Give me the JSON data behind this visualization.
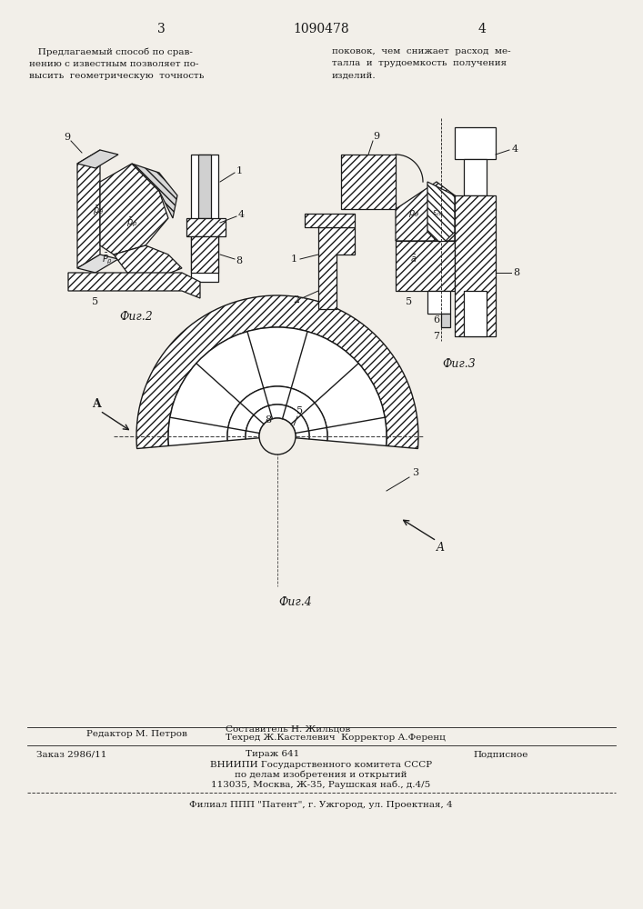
{
  "bg_color": "#f2efe9",
  "page_width": 7.07,
  "page_height": 10.0,
  "header": {
    "page_left": "3",
    "patent_number": "1090478",
    "page_right": "4"
  },
  "text_block_left": "   Предлагаемый способ по срав-\nнению с известным позволяет по-\nвысить  геометрическую  точность",
  "text_block_right": "поковок,  чем  снижает  расход  ме-\nталла  и  трудоемкость  получения\nизделий.",
  "fig2_caption": "Фиг.2",
  "fig3_caption": "Фиг.3",
  "fig4_caption": "Фиг.4",
  "footer_line1_left": "Редактор М. Петров",
  "footer_line1_mid": "Техред Ж.Кастелевич  Корректор А.Ференц",
  "footer_line2_left": "Заказ 2986/11",
  "footer_line2_mid": "Тираж 641",
  "footer_line2_right": "Подписное",
  "footer_line3": "ВНИИПИ Государственного комитета СССР",
  "footer_line4": "по делам изобретения и открытий",
  "footer_line5": "113035, Москва, Ж-35, Раушская наб., д.4/5",
  "footer_last": "Филиал ППП \"Патент\", г. Ужгород, ул. Проектная, 4",
  "составитель": "Составитель Н. Жильцов",
  "line_color": "#1a1a1a",
  "text_color": "#1a1a1a"
}
